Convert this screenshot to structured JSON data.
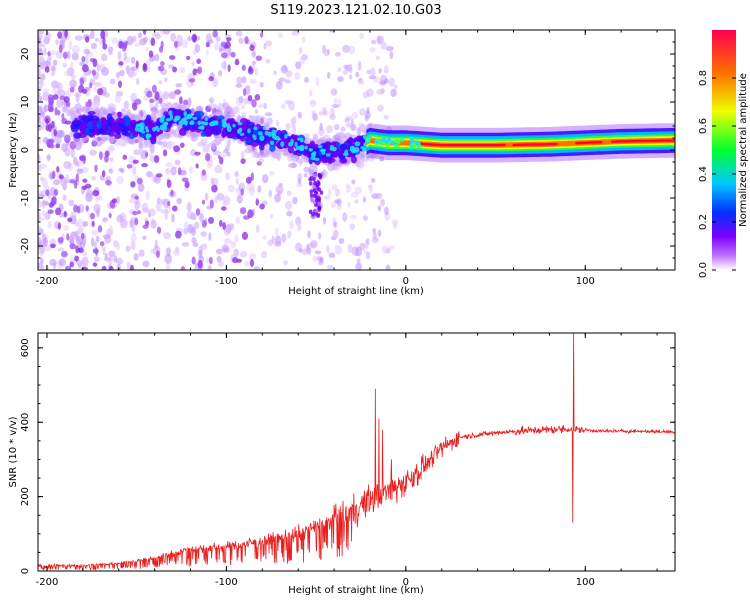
{
  "figure": {
    "title": "S119.2023.121.02.10.G03"
  },
  "chart_data": [
    {
      "type": "heatmap",
      "xlabel": "Height of straight line (km)",
      "ylabel": "Frequency (Hz)",
      "xlim": [
        -205,
        150
      ],
      "ylim": [
        -25,
        25
      ],
      "x_ticks": [
        -200,
        -100,
        0,
        100
      ],
      "y_ticks": [
        -20,
        -10,
        0,
        10,
        20
      ],
      "colorbar": {
        "label": "Normalized spectral amplitude",
        "range": [
          0,
          1
        ],
        "ticks": [
          0.0,
          0.2,
          0.4,
          0.6,
          0.8
        ],
        "colors": [
          "#ffffff",
          "#c070ff",
          "#7a00ff",
          "#0030ff",
          "#00c8ff",
          "#00ff30",
          "#f0ff00",
          "#ff7000",
          "#ff0050"
        ]
      },
      "ridge": [
        {
          "x": -180,
          "f": 5
        },
        {
          "x": -160,
          "f": 5
        },
        {
          "x": -140,
          "f": 4
        },
        {
          "x": -130,
          "f": 7
        },
        {
          "x": -120,
          "f": 6
        },
        {
          "x": -110,
          "f": 5
        },
        {
          "x": -100,
          "f": 5
        },
        {
          "x": -90,
          "f": 4
        },
        {
          "x": -80,
          "f": 3
        },
        {
          "x": -70,
          "f": 2
        },
        {
          "x": -60,
          "f": 1
        },
        {
          "x": -50,
          "f": -1
        },
        {
          "x": -40,
          "f": 0
        },
        {
          "x": -30,
          "f": 0
        },
        {
          "x": -20,
          "f": 2
        },
        {
          "x": -10,
          "f": 1.5
        },
        {
          "x": 0,
          "f": 1.5
        },
        {
          "x": 20,
          "f": 1
        },
        {
          "x": 50,
          "f": 1
        },
        {
          "x": 80,
          "f": 1.2
        },
        {
          "x": 100,
          "f": 1.5
        },
        {
          "x": 120,
          "f": 1.8
        },
        {
          "x": 150,
          "f": 2
        }
      ]
    },
    {
      "type": "line",
      "xlabel": "Height of straight line (km)",
      "ylabel": "SNR (10 * v/v)",
      "xlim": [
        -205,
        150
      ],
      "ylim": [
        0,
        640
      ],
      "x_ticks": [
        -200,
        -100,
        0,
        100
      ],
      "y_ticks": [
        0,
        200,
        400,
        600
      ],
      "color": "#e82020",
      "envelope": [
        {
          "x": -205,
          "y": 15
        },
        {
          "x": -180,
          "y": 15
        },
        {
          "x": -160,
          "y": 20
        },
        {
          "x": -140,
          "y": 35
        },
        {
          "x": -120,
          "y": 60
        },
        {
          "x": -100,
          "y": 65
        },
        {
          "x": -80,
          "y": 80
        },
        {
          "x": -60,
          "y": 100
        },
        {
          "x": -40,
          "y": 140
        },
        {
          "x": -30,
          "y": 160
        },
        {
          "x": -20,
          "y": 190
        },
        {
          "x": -10,
          "y": 215
        },
        {
          "x": 0,
          "y": 240
        },
        {
          "x": 10,
          "y": 280
        },
        {
          "x": 20,
          "y": 330
        },
        {
          "x": 30,
          "y": 360
        },
        {
          "x": 50,
          "y": 372
        },
        {
          "x": 70,
          "y": 378
        },
        {
          "x": 90,
          "y": 382
        },
        {
          "x": 110,
          "y": 376
        },
        {
          "x": 130,
          "y": 376
        },
        {
          "x": 150,
          "y": 374
        }
      ],
      "spikes": [
        {
          "x": -17,
          "y": 490
        },
        {
          "x": -15,
          "y": 410
        },
        {
          "x": -13,
          "y": 380
        },
        {
          "x": -8,
          "y": 300
        },
        {
          "x": 93.5,
          "y": 640
        },
        {
          "x": 93,
          "y": 130
        }
      ]
    }
  ]
}
